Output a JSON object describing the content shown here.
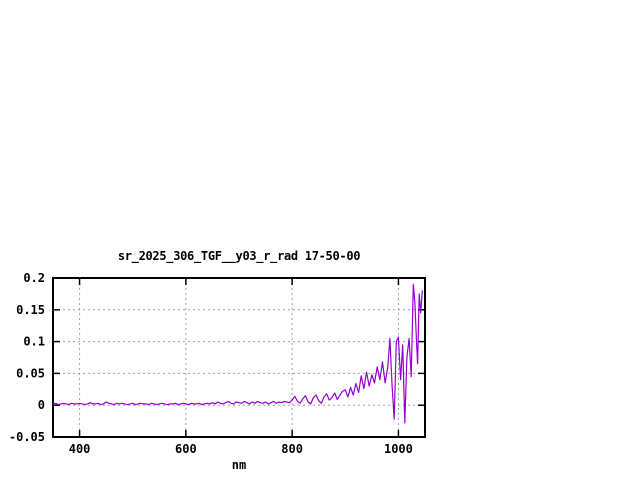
{
  "page": {
    "background": "#ffffff"
  },
  "chart_data": {
    "type": "line",
    "title": "sr_2025_306_TGF__y03_r_rad 17-50-00",
    "xlabel": "nm",
    "ylabel": "",
    "xlim": [
      350,
      1050
    ],
    "ylim": [
      -0.05,
      0.2
    ],
    "grid": true,
    "legend": "none",
    "x_ticks": {
      "values": [
        400,
        600,
        800,
        1000
      ],
      "labels": [
        "400",
        "600",
        "800",
        "1000"
      ]
    },
    "y_ticks": {
      "values": [
        -0.05,
        0,
        0.05,
        0.1,
        0.15,
        0.2
      ],
      "labels": [
        "-0.05",
        "0",
        "0.05",
        "0.1",
        "0.15",
        "0.2"
      ]
    },
    "colors": {
      "line": "#9400d3",
      "grid": "#a0a0a0",
      "border": "#000000",
      "text": "#000000",
      "background": "#ffffff"
    },
    "series": [
      {
        "name": "sr_2025_306_TGF__y03_r_rad",
        "color": "#9400d3",
        "x": [
          350,
          355,
          360,
          365,
          370,
          375,
          380,
          385,
          390,
          395,
          400,
          405,
          410,
          415,
          420,
          425,
          430,
          435,
          440,
          445,
          450,
          455,
          460,
          465,
          470,
          475,
          480,
          485,
          490,
          495,
          500,
          505,
          510,
          515,
          520,
          525,
          530,
          535,
          540,
          545,
          550,
          555,
          560,
          565,
          570,
          575,
          580,
          585,
          590,
          595,
          600,
          605,
          610,
          615,
          620,
          625,
          630,
          635,
          640,
          645,
          650,
          655,
          660,
          665,
          670,
          675,
          680,
          685,
          690,
          695,
          700,
          705,
          710,
          715,
          720,
          725,
          730,
          735,
          740,
          745,
          750,
          755,
          760,
          765,
          770,
          775,
          780,
          785,
          790,
          795,
          800,
          805,
          810,
          815,
          820,
          825,
          830,
          835,
          840,
          845,
          850,
          855,
          860,
          865,
          870,
          875,
          880,
          885,
          890,
          895,
          900,
          905,
          910,
          915,
          920,
          925,
          930,
          935,
          940,
          945,
          950,
          955,
          960,
          965,
          970,
          975,
          980,
          984,
          988,
          992,
          996,
          1000,
          1004,
          1008,
          1012,
          1016,
          1020,
          1024,
          1028,
          1031,
          1034,
          1036,
          1039,
          1042,
          1045
        ],
        "y": [
          0.002,
          0.003,
          0.001,
          0.002,
          0.003,
          0.002,
          0.001,
          0.003,
          0.002,
          0.002,
          0.003,
          0.002,
          0.001,
          0.002,
          0.004,
          0.002,
          0.002,
          0.003,
          0.001,
          0.002,
          0.005,
          0.003,
          0.002,
          0.001,
          0.003,
          0.002,
          0.003,
          0.002,
          0.001,
          0.002,
          0.003,
          0.001,
          0.002,
          0.003,
          0.002,
          0.002,
          0.001,
          0.003,
          0.002,
          0.001,
          0.002,
          0.003,
          0.002,
          0.001,
          0.002,
          0.002,
          0.003,
          0.001,
          0.002,
          0.003,
          0.002,
          0.001,
          0.003,
          0.002,
          0.002,
          0.003,
          0.001,
          0.002,
          0.003,
          0.002,
          0.004,
          0.002,
          0.005,
          0.003,
          0.002,
          0.004,
          0.006,
          0.003,
          0.002,
          0.005,
          0.004,
          0.003,
          0.006,
          0.004,
          0.002,
          0.005,
          0.003,
          0.006,
          0.004,
          0.003,
          0.005,
          0.002,
          0.004,
          0.006,
          0.003,
          0.005,
          0.004,
          0.006,
          0.005,
          0.004,
          0.008,
          0.014,
          0.006,
          0.003,
          0.01,
          0.015,
          0.005,
          0.002,
          0.012,
          0.016,
          0.007,
          0.003,
          0.013,
          0.018,
          0.008,
          0.012,
          0.019,
          0.009,
          0.016,
          0.022,
          0.024,
          0.013,
          0.028,
          0.016,
          0.034,
          0.02,
          0.046,
          0.026,
          0.052,
          0.03,
          0.048,
          0.035,
          0.06,
          0.04,
          0.068,
          0.035,
          0.06,
          0.105,
          0.03,
          -0.022,
          0.1,
          0.107,
          0.04,
          0.095,
          -0.028,
          0.075,
          0.105,
          0.045,
          0.19,
          0.16,
          0.1,
          0.065,
          0.175,
          0.145,
          0.18
        ]
      }
    ]
  }
}
